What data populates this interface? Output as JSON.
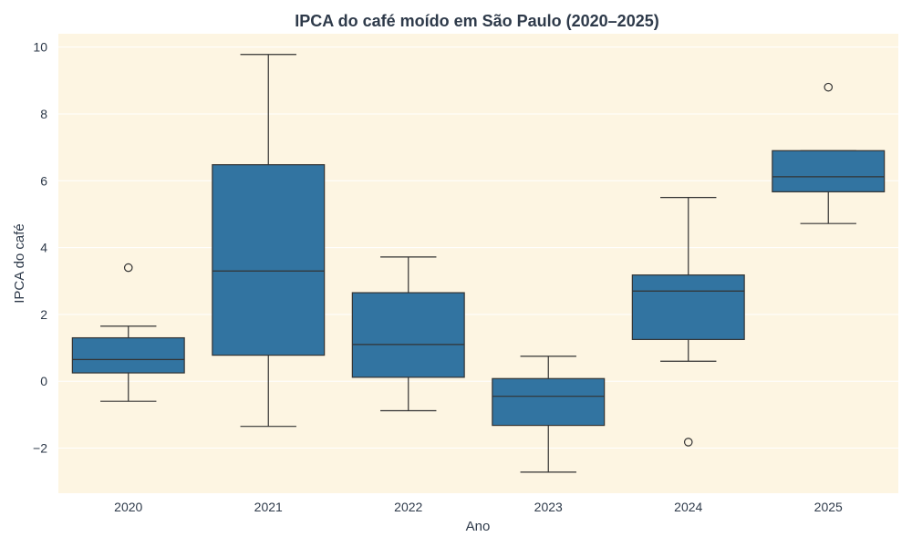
{
  "chart_data": {
    "type": "box",
    "title": "IPCA do café moído em São Paulo (2020–2025)",
    "xlabel": "Ano",
    "ylabel": "IPCA do café",
    "ylim": [
      -3.35,
      10.4
    ],
    "yticks": [
      -2,
      0,
      2,
      4,
      6,
      8,
      10
    ],
    "ytick_labels": [
      "−2",
      "0",
      "2",
      "4",
      "6",
      "8",
      "10"
    ],
    "categories": [
      "2020",
      "2021",
      "2022",
      "2023",
      "2024",
      "2025"
    ],
    "boxes": [
      {
        "category": "2020",
        "whisker_low": -0.6,
        "q1": 0.25,
        "median": 0.65,
        "q3": 1.3,
        "whisker_high": 1.65,
        "outliers": [
          3.4
        ]
      },
      {
        "category": "2021",
        "whisker_low": -1.35,
        "q1": 0.78,
        "median": 3.3,
        "q3": 6.48,
        "whisker_high": 9.78,
        "outliers": []
      },
      {
        "category": "2022",
        "whisker_low": -0.88,
        "q1": 0.12,
        "median": 1.1,
        "q3": 2.65,
        "whisker_high": 3.72,
        "outliers": []
      },
      {
        "category": "2023",
        "whisker_low": -2.72,
        "q1": -1.32,
        "median": -0.45,
        "q3": 0.08,
        "whisker_high": 0.75,
        "outliers": []
      },
      {
        "category": "2024",
        "whisker_low": 0.6,
        "q1": 1.25,
        "median": 2.7,
        "q3": 3.18,
        "whisker_high": 5.5,
        "outliers": [
          -1.82
        ]
      },
      {
        "category": "2025",
        "whisker_low": 4.72,
        "q1": 5.67,
        "median": 6.12,
        "q3": 6.9,
        "whisker_high": 6.9,
        "outliers": [
          8.8
        ]
      }
    ],
    "grid": true,
    "colors": {
      "plot_background": "#fdf5e2",
      "box_fill": "#3274a1",
      "line": "#333333",
      "grid": "#ffffff"
    }
  }
}
